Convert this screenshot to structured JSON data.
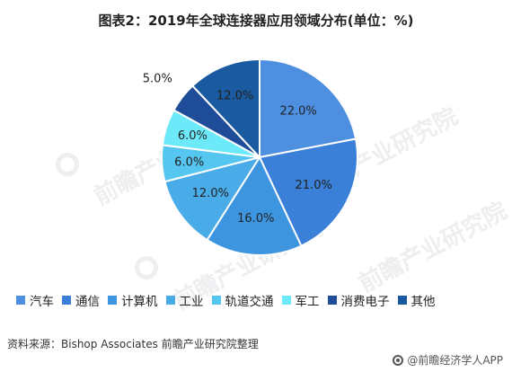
{
  "title": "图表2：2019年全球连接器应用领域分布(单位：%)",
  "chart_data": {
    "type": "pie",
    "title": "图表2：2019年全球连接器应用领域分布(单位：%)",
    "categories": [
      "汽车",
      "通信",
      "计算机",
      "工业",
      "轨道交通",
      "军工",
      "消费电子",
      "其他"
    ],
    "values": [
      22.0,
      21.0,
      16.0,
      12.0,
      6.0,
      6.0,
      5.0,
      12.0
    ],
    "labels": [
      "22.0%",
      "21.0%",
      "16.0%",
      "12.0%",
      "6.0%",
      "6.0%",
      "5.0%",
      "12.0%"
    ],
    "colors": [
      "#4e8fe0",
      "#3a7fd8",
      "#3d95e0",
      "#49abe8",
      "#55c6ef",
      "#6ceafa",
      "#1f4c99",
      "#1a5aa0"
    ],
    "legend_placement": "bottom",
    "start_angle_deg": 0,
    "direction": "clockwise"
  },
  "legend": [
    {
      "label": "汽车",
      "color": "#4e8fe0"
    },
    {
      "label": "通信",
      "color": "#3a7fd8"
    },
    {
      "label": "计算机",
      "color": "#3d95e0"
    },
    {
      "label": "工业",
      "color": "#49abe8"
    },
    {
      "label": "轨道交通",
      "color": "#55c6ef"
    },
    {
      "label": "军工",
      "color": "#6ceafa"
    },
    {
      "label": "消费电子",
      "color": "#1f4c99"
    },
    {
      "label": "其他",
      "color": "#1a5aa0"
    }
  ],
  "source": "资料来源：Bishop Associates 前瞻产业研究院整理",
  "brand": "@前瞻经济学人APP",
  "watermark": "前瞻产业研究院"
}
